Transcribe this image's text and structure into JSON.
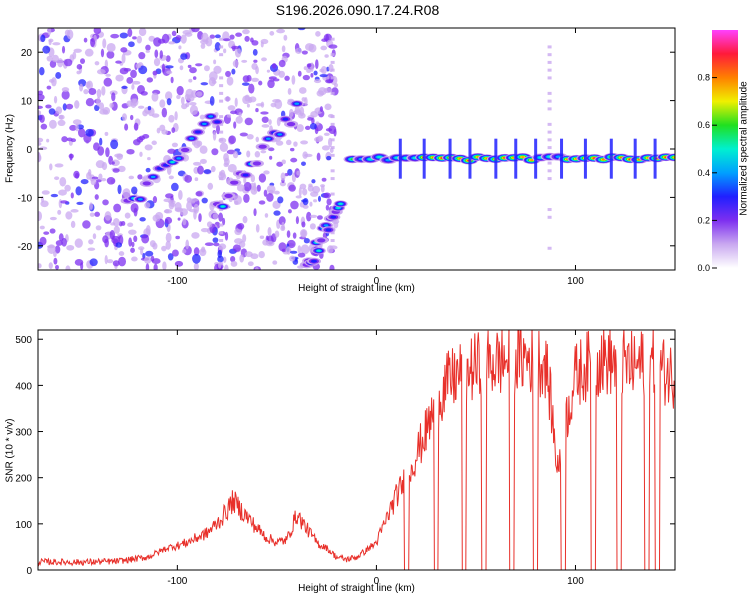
{
  "page": {
    "title": "S196.2026.090.17.24.R08"
  },
  "colors": {
    "snr_line": "#e8302a",
    "colormap": [
      "#ffffff",
      "#c9a8f0",
      "#7e2ff0",
      "#2020ff",
      "#00a0ff",
      "#00f0d0",
      "#20e020",
      "#f0f000",
      "#ff8000",
      "#ff1a3a",
      "#ff40ff"
    ]
  },
  "chart_data": [
    {
      "type": "heatmap",
      "title": "",
      "xlabel": "Height of straight line (km)",
      "ylabel": "Frequency (Hz)",
      "xlim": [
        -170,
        150
      ],
      "ylim": [
        -25,
        25
      ],
      "x_ticks": [
        -100,
        0,
        100
      ],
      "x_tick_labels": [
        "-100",
        "0",
        "100"
      ],
      "y_ticks": [
        -20,
        -10,
        0,
        10,
        20
      ],
      "y_tick_labels": [
        "-20",
        "-10",
        "0",
        "10",
        "20"
      ],
      "colorbar": {
        "label": "Normalized spectral amplitude",
        "range": [
          0,
          1
        ],
        "ticks": [
          0,
          0.2,
          0.4,
          0.6,
          0.8
        ],
        "tick_labels": [
          "0.0",
          "0.2",
          "0.4",
          "0.6",
          "0.8"
        ]
      },
      "features": [
        {
          "name": "steady tone",
          "x_range": [
            -15,
            150
          ],
          "freq_hz": -2,
          "peak_amplitude": 0.9
        },
        {
          "name": "ascending segment",
          "x_range": [
            -125,
            -80
          ],
          "freq_hz_range": [
            -12,
            7
          ],
          "peak_amplitude": 0.35
        },
        {
          "name": "ascending segment",
          "x_range": [
            -80,
            -40
          ],
          "freq_hz_range": [
            -12,
            8
          ],
          "peak_amplitude": 0.3
        },
        {
          "name": "ascending segment",
          "x_range": [
            -35,
            -18
          ],
          "freq_hz_range": [
            -25,
            -10
          ],
          "peak_amplitude": 0.25
        }
      ]
    },
    {
      "type": "line",
      "title": "",
      "xlabel": "Height of straight line (km)",
      "ylabel": "SNR (10 * v/v)",
      "xlim": [
        -170,
        150
      ],
      "ylim": [
        0,
        520
      ],
      "x_ticks": [
        -100,
        0,
        100
      ],
      "x_tick_labels": [
        "-100",
        "0",
        "100"
      ],
      "y_ticks": [
        0,
        100,
        200,
        300,
        400,
        500
      ],
      "y_tick_labels": [
        "0",
        "100",
        "200",
        "300",
        "400",
        "500"
      ],
      "series": [
        {
          "x": [
            -170,
            -150,
            -130,
            -115,
            -105,
            -95,
            -85,
            -78,
            -72,
            -66,
            -60,
            -55,
            -50,
            -45,
            -40,
            -35,
            -30,
            -25,
            -20,
            -15,
            -10,
            -5,
            0,
            5,
            10,
            15,
            20,
            25,
            30,
            35,
            40,
            45,
            50,
            55,
            60,
            65,
            70,
            75,
            80,
            85,
            88,
            90,
            92,
            95,
            100,
            105,
            110,
            115,
            120,
            125,
            130,
            135,
            140,
            145,
            150
          ],
          "y": [
            15,
            14,
            16,
            25,
            45,
            60,
            80,
            110,
            150,
            120,
            90,
            70,
            60,
            65,
            120,
            90,
            60,
            45,
            25,
            20,
            25,
            40,
            60,
            110,
            160,
            200,
            250,
            300,
            360,
            400,
            420,
            430,
            440,
            445,
            450,
            455,
            460,
            460,
            455,
            450,
            350,
            250,
            220,
            320,
            420,
            440,
            450,
            455,
            450,
            445,
            440,
            450,
            445,
            430,
            420
          ],
          "drops_to_zero_at_x": [
            15,
            30,
            44,
            54,
            68,
            80,
            94,
            109,
            122,
            136,
            141
          ]
        }
      ]
    }
  ]
}
